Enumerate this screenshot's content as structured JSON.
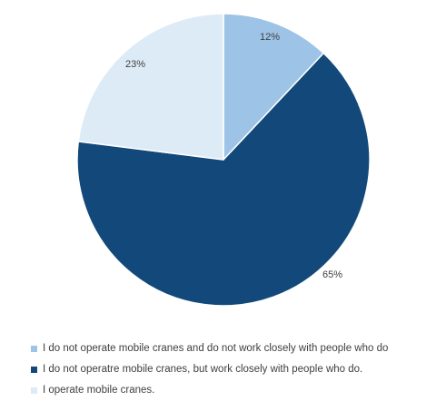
{
  "chart_data": {
    "type": "pie",
    "start_angle_deg": 0,
    "direction": "clockwise",
    "legend_position": "bottom",
    "slices": [
      {
        "label": "I do not operate mobile cranes and do not work closely with people who do",
        "value": 12,
        "value_label": "12%",
        "color": "#9dc3e6"
      },
      {
        "label": "I do not operatre mobile cranes, but work closely with people who do.",
        "value": 65,
        "value_label": "65%",
        "color": "#12497a"
      },
      {
        "label": "I operate mobile cranes.",
        "value": 23,
        "value_label": "23%",
        "color": "#ddebf7"
      }
    ]
  }
}
